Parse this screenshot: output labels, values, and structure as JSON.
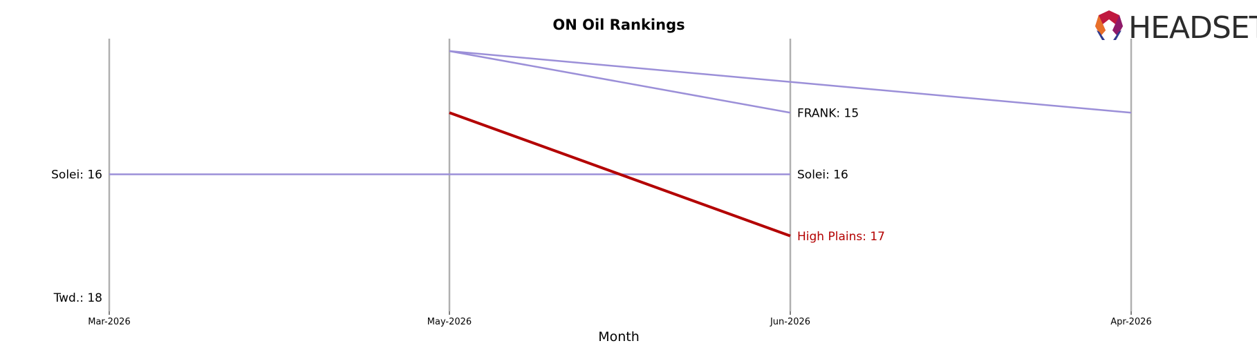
{
  "chart_data": {
    "type": "line",
    "title": "ON Oil Rankings",
    "xlabel": "Month",
    "ylabel": "",
    "categories": [
      "Mar-2026",
      "May-2026",
      "Jun-2026",
      "Apr-2026"
    ],
    "y_inverted": true,
    "ylim": [
      18,
      13.5
    ],
    "grid": "vertical lines at each month",
    "series": [
      {
        "name": "",
        "color": "#9b8fd8",
        "highlight": false,
        "points": [
          {
            "x": "May-2026",
            "y": 14
          },
          {
            "x": "Jun-2026",
            "y": 15
          }
        ],
        "end_label": "FRANK: 15"
      },
      {
        "name": "",
        "color": "#9b8fd8",
        "highlight": false,
        "points": [
          {
            "x": "May-2026",
            "y": 14
          },
          {
            "x": "Apr-2026",
            "y": 15
          }
        ],
        "end_label": ""
      },
      {
        "name": "",
        "color": "#9b8fd8",
        "highlight": false,
        "points": [
          {
            "x": "Mar-2026",
            "y": 16
          },
          {
            "x": "May-2026",
            "y": 16
          },
          {
            "x": "Jun-2026",
            "y": 16
          }
        ],
        "start_label": "Solei: 16",
        "end_label": "Solei: 16"
      },
      {
        "name": "",
        "color": "#b30000",
        "highlight": true,
        "points": [
          {
            "x": "May-2026",
            "y": 15
          },
          {
            "x": "Jun-2026",
            "y": 17
          }
        ],
        "end_label": "High Plains: 17"
      }
    ],
    "left_labels": [
      {
        "text": "Twd.: 18",
        "y": 18
      }
    ],
    "colors": {
      "vline": "#b0b0b0",
      "other": "#9b8fd8",
      "highlight": "#b30000"
    }
  },
  "logo": {
    "text": "HEADSET"
  }
}
